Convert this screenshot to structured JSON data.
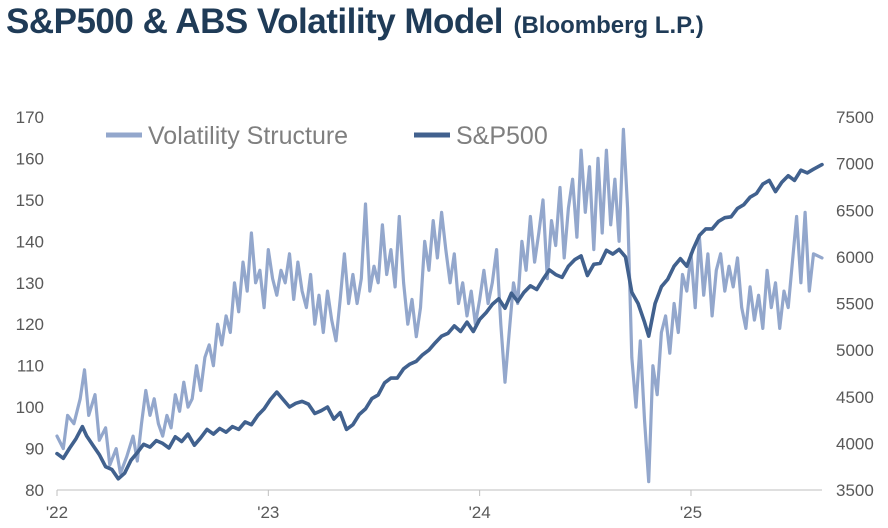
{
  "chart_data": {
    "type": "line",
    "title": "S&P500 & ABS Volatility Model",
    "subtitle": "(Bloomberg L.P.)",
    "x_ticks": [
      "'22",
      "'23",
      "'24",
      "'25"
    ],
    "x_range": [
      2022.0,
      2025.62
    ],
    "y_left": {
      "min": 80,
      "max": 170,
      "ticks": [
        "80",
        "90",
        "100",
        "110",
        "120",
        "130",
        "140",
        "150",
        "160",
        "170"
      ]
    },
    "y_right": {
      "min": 3500,
      "max": 7500,
      "ticks": [
        "3500",
        "4000",
        "4500",
        "5000",
        "5500",
        "6000",
        "6500",
        "7000",
        "7500"
      ]
    },
    "legend_position": "top-left",
    "series": [
      {
        "name": "Volatility Structure",
        "axis": "left",
        "color": "#93a7cc",
        "points": [
          [
            2022.0,
            93
          ],
          [
            2022.03,
            90
          ],
          [
            2022.05,
            98
          ],
          [
            2022.08,
            96
          ],
          [
            2022.11,
            102
          ],
          [
            2022.13,
            109
          ],
          [
            2022.15,
            98
          ],
          [
            2022.18,
            103
          ],
          [
            2022.2,
            92
          ],
          [
            2022.23,
            95
          ],
          [
            2022.25,
            86
          ],
          [
            2022.28,
            90
          ],
          [
            2022.3,
            84
          ],
          [
            2022.33,
            88
          ],
          [
            2022.36,
            93
          ],
          [
            2022.38,
            87
          ],
          [
            2022.4,
            96
          ],
          [
            2022.42,
            104
          ],
          [
            2022.44,
            98
          ],
          [
            2022.46,
            102
          ],
          [
            2022.48,
            96
          ],
          [
            2022.5,
            93
          ],
          [
            2022.52,
            98
          ],
          [
            2022.54,
            95
          ],
          [
            2022.56,
            103
          ],
          [
            2022.58,
            99
          ],
          [
            2022.6,
            106
          ],
          [
            2022.62,
            100
          ],
          [
            2022.64,
            102
          ],
          [
            2022.66,
            110
          ],
          [
            2022.68,
            104
          ],
          [
            2022.7,
            112
          ],
          [
            2022.72,
            115
          ],
          [
            2022.74,
            110
          ],
          [
            2022.76,
            120
          ],
          [
            2022.78,
            115
          ],
          [
            2022.8,
            122
          ],
          [
            2022.82,
            118
          ],
          [
            2022.84,
            130
          ],
          [
            2022.86,
            123
          ],
          [
            2022.88,
            135
          ],
          [
            2022.9,
            128
          ],
          [
            2022.92,
            142
          ],
          [
            2022.94,
            130
          ],
          [
            2022.96,
            133
          ],
          [
            2022.98,
            124
          ],
          [
            2023.0,
            138
          ],
          [
            2023.02,
            131
          ],
          [
            2023.04,
            127
          ],
          [
            2023.06,
            133
          ],
          [
            2023.08,
            130
          ],
          [
            2023.1,
            137
          ],
          [
            2023.12,
            126
          ],
          [
            2023.14,
            135
          ],
          [
            2023.16,
            128
          ],
          [
            2023.18,
            124
          ],
          [
            2023.2,
            132
          ],
          [
            2023.22,
            120
          ],
          [
            2023.24,
            127
          ],
          [
            2023.26,
            118
          ],
          [
            2023.28,
            128
          ],
          [
            2023.3,
            121
          ],
          [
            2023.32,
            116
          ],
          [
            2023.34,
            126
          ],
          [
            2023.36,
            137
          ],
          [
            2023.38,
            125
          ],
          [
            2023.4,
            132
          ],
          [
            2023.42,
            125
          ],
          [
            2023.44,
            131
          ],
          [
            2023.46,
            149
          ],
          [
            2023.48,
            128
          ],
          [
            2023.5,
            134
          ],
          [
            2023.52,
            130
          ],
          [
            2023.54,
            144
          ],
          [
            2023.56,
            132
          ],
          [
            2023.58,
            138
          ],
          [
            2023.6,
            129
          ],
          [
            2023.62,
            146
          ],
          [
            2023.64,
            130
          ],
          [
            2023.66,
            120
          ],
          [
            2023.68,
            126
          ],
          [
            2023.7,
            117
          ],
          [
            2023.72,
            124
          ],
          [
            2023.74,
            140
          ],
          [
            2023.76,
            133
          ],
          [
            2023.78,
            145
          ],
          [
            2023.8,
            136
          ],
          [
            2023.82,
            147
          ],
          [
            2023.84,
            138
          ],
          [
            2023.86,
            130
          ],
          [
            2023.88,
            137
          ],
          [
            2023.9,
            125
          ],
          [
            2023.92,
            130
          ],
          [
            2023.94,
            122
          ],
          [
            2023.96,
            128
          ],
          [
            2023.98,
            120
          ],
          [
            2024.0,
            126
          ],
          [
            2024.02,
            133
          ],
          [
            2024.04,
            125
          ],
          [
            2024.06,
            130
          ],
          [
            2024.08,
            138
          ],
          [
            2024.1,
            120
          ],
          [
            2024.12,
            106
          ],
          [
            2024.14,
            118
          ],
          [
            2024.16,
            130
          ],
          [
            2024.18,
            125
          ],
          [
            2024.2,
            140
          ],
          [
            2024.22,
            133
          ],
          [
            2024.24,
            146
          ],
          [
            2024.26,
            135
          ],
          [
            2024.28,
            142
          ],
          [
            2024.3,
            150
          ],
          [
            2024.32,
            131
          ],
          [
            2024.34,
            145
          ],
          [
            2024.36,
            139
          ],
          [
            2024.38,
            153
          ],
          [
            2024.4,
            136
          ],
          [
            2024.42,
            148
          ],
          [
            2024.44,
            155
          ],
          [
            2024.46,
            141
          ],
          [
            2024.48,
            162
          ],
          [
            2024.5,
            147
          ],
          [
            2024.52,
            158
          ],
          [
            2024.54,
            138
          ],
          [
            2024.56,
            160
          ],
          [
            2024.58,
            142
          ],
          [
            2024.6,
            162
          ],
          [
            2024.62,
            144
          ],
          [
            2024.64,
            155
          ],
          [
            2024.66,
            140
          ],
          [
            2024.68,
            167
          ],
          [
            2024.7,
            148
          ],
          [
            2024.72,
            112
          ],
          [
            2024.74,
            100
          ],
          [
            2024.76,
            116
          ],
          [
            2024.78,
            97
          ],
          [
            2024.8,
            82
          ],
          [
            2024.82,
            110
          ],
          [
            2024.84,
            103
          ],
          [
            2024.86,
            118
          ],
          [
            2024.88,
            122
          ],
          [
            2024.9,
            113
          ],
          [
            2024.92,
            125
          ],
          [
            2024.94,
            118
          ],
          [
            2024.96,
            132
          ],
          [
            2024.98,
            128
          ],
          [
            2025.0,
            137
          ],
          [
            2025.02,
            124
          ],
          [
            2025.04,
            141
          ],
          [
            2025.06,
            127
          ],
          [
            2025.08,
            137
          ],
          [
            2025.1,
            122
          ],
          [
            2025.12,
            133
          ],
          [
            2025.14,
            137
          ],
          [
            2025.16,
            128
          ],
          [
            2025.18,
            134
          ],
          [
            2025.2,
            129
          ],
          [
            2025.22,
            136
          ],
          [
            2025.24,
            124
          ],
          [
            2025.26,
            119
          ],
          [
            2025.28,
            129
          ],
          [
            2025.3,
            121
          ],
          [
            2025.32,
            127
          ],
          [
            2025.34,
            119
          ],
          [
            2025.36,
            133
          ],
          [
            2025.38,
            124
          ],
          [
            2025.4,
            130
          ],
          [
            2025.42,
            119
          ],
          [
            2025.44,
            128
          ],
          [
            2025.46,
            124
          ],
          [
            2025.48,
            135
          ],
          [
            2025.5,
            146
          ],
          [
            2025.52,
            130
          ],
          [
            2025.54,
            147
          ],
          [
            2025.56,
            128
          ],
          [
            2025.58,
            137
          ],
          [
            2025.62,
            136
          ]
        ]
      },
      {
        "name": "S&P500",
        "axis": "right",
        "color": "#41618e",
        "points": [
          [
            2022.0,
            3890
          ],
          [
            2022.03,
            3840
          ],
          [
            2022.06,
            3950
          ],
          [
            2022.09,
            4050
          ],
          [
            2022.12,
            4180
          ],
          [
            2022.14,
            4080
          ],
          [
            2022.17,
            3980
          ],
          [
            2022.2,
            3880
          ],
          [
            2022.23,
            3750
          ],
          [
            2022.26,
            3720
          ],
          [
            2022.29,
            3620
          ],
          [
            2022.32,
            3680
          ],
          [
            2022.35,
            3820
          ],
          [
            2022.38,
            3900
          ],
          [
            2022.41,
            3990
          ],
          [
            2022.44,
            3960
          ],
          [
            2022.47,
            4030
          ],
          [
            2022.5,
            4000
          ],
          [
            2022.53,
            3950
          ],
          [
            2022.56,
            4070
          ],
          [
            2022.59,
            4020
          ],
          [
            2022.62,
            4100
          ],
          [
            2022.65,
            3980
          ],
          [
            2022.68,
            4060
          ],
          [
            2022.71,
            4150
          ],
          [
            2022.74,
            4100
          ],
          [
            2022.77,
            4160
          ],
          [
            2022.8,
            4120
          ],
          [
            2022.83,
            4180
          ],
          [
            2022.86,
            4150
          ],
          [
            2022.89,
            4230
          ],
          [
            2022.92,
            4200
          ],
          [
            2022.95,
            4300
          ],
          [
            2022.98,
            4370
          ],
          [
            2023.01,
            4470
          ],
          [
            2023.04,
            4550
          ],
          [
            2023.07,
            4470
          ],
          [
            2023.1,
            4390
          ],
          [
            2023.13,
            4430
          ],
          [
            2023.16,
            4450
          ],
          [
            2023.19,
            4420
          ],
          [
            2023.22,
            4320
          ],
          [
            2023.25,
            4350
          ],
          [
            2023.28,
            4390
          ],
          [
            2023.31,
            4260
          ],
          [
            2023.34,
            4330
          ],
          [
            2023.37,
            4150
          ],
          [
            2023.4,
            4200
          ],
          [
            2023.43,
            4310
          ],
          [
            2023.46,
            4370
          ],
          [
            2023.49,
            4480
          ],
          [
            2023.52,
            4520
          ],
          [
            2023.55,
            4650
          ],
          [
            2023.58,
            4700
          ],
          [
            2023.61,
            4700
          ],
          [
            2023.64,
            4800
          ],
          [
            2023.67,
            4850
          ],
          [
            2023.7,
            4880
          ],
          [
            2023.73,
            4950
          ],
          [
            2023.76,
            5000
          ],
          [
            2023.79,
            5080
          ],
          [
            2023.82,
            5150
          ],
          [
            2023.85,
            5180
          ],
          [
            2023.88,
            5260
          ],
          [
            2023.91,
            5200
          ],
          [
            2023.94,
            5300
          ],
          [
            2023.97,
            5200
          ],
          [
            2024.0,
            5330
          ],
          [
            2024.03,
            5400
          ],
          [
            2024.06,
            5490
          ],
          [
            2024.09,
            5550
          ],
          [
            2024.12,
            5450
          ],
          [
            2024.15,
            5610
          ],
          [
            2024.18,
            5520
          ],
          [
            2024.21,
            5620
          ],
          [
            2024.24,
            5690
          ],
          [
            2024.27,
            5650
          ],
          [
            2024.3,
            5760
          ],
          [
            2024.33,
            5860
          ],
          [
            2024.36,
            5810
          ],
          [
            2024.39,
            5780
          ],
          [
            2024.42,
            5900
          ],
          [
            2024.45,
            5970
          ],
          [
            2024.48,
            6010
          ],
          [
            2024.51,
            5800
          ],
          [
            2024.54,
            5920
          ],
          [
            2024.57,
            5930
          ],
          [
            2024.6,
            6070
          ],
          [
            2024.63,
            6030
          ],
          [
            2024.66,
            6080
          ],
          [
            2024.69,
            6000
          ],
          [
            2024.72,
            5620
          ],
          [
            2024.75,
            5500
          ],
          [
            2024.78,
            5300
          ],
          [
            2024.8,
            5150
          ],
          [
            2024.83,
            5500
          ],
          [
            2024.86,
            5680
          ],
          [
            2024.89,
            5760
          ],
          [
            2024.92,
            5900
          ],
          [
            2024.95,
            5980
          ],
          [
            2024.98,
            5900
          ],
          [
            2025.01,
            6080
          ],
          [
            2025.04,
            6230
          ],
          [
            2025.07,
            6300
          ],
          [
            2025.1,
            6300
          ],
          [
            2025.13,
            6380
          ],
          [
            2025.16,
            6420
          ],
          [
            2025.19,
            6430
          ],
          [
            2025.22,
            6520
          ],
          [
            2025.25,
            6560
          ],
          [
            2025.28,
            6640
          ],
          [
            2025.31,
            6680
          ],
          [
            2025.34,
            6780
          ],
          [
            2025.37,
            6820
          ],
          [
            2025.4,
            6700
          ],
          [
            2025.43,
            6800
          ],
          [
            2025.46,
            6870
          ],
          [
            2025.49,
            6820
          ],
          [
            2025.52,
            6930
          ],
          [
            2025.55,
            6900
          ],
          [
            2025.58,
            6940
          ],
          [
            2025.62,
            6990
          ]
        ]
      }
    ]
  }
}
